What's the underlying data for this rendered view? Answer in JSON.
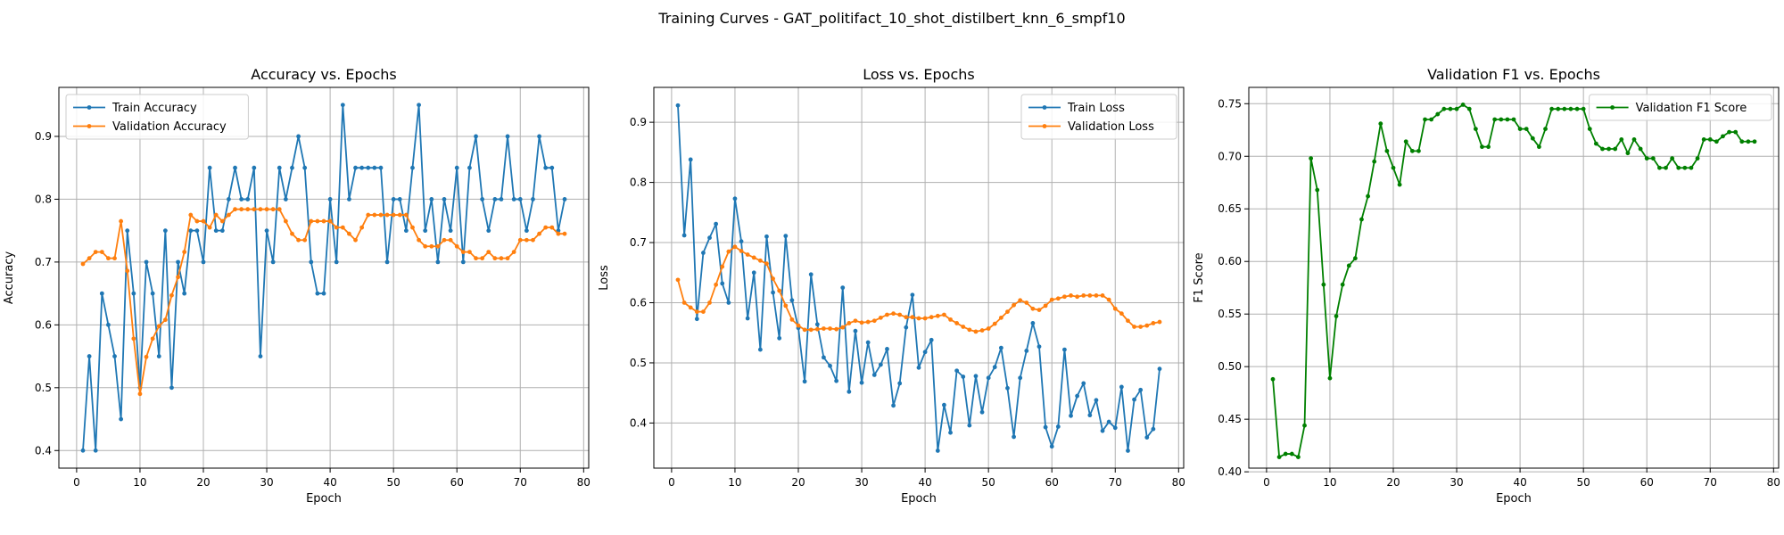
{
  "suptitle": "Training Curves - GAT_politifact_10_shot_distilbert_knn_6_smpf10",
  "colors": {
    "train": "#1f77b4",
    "validation": "#ff7f0e",
    "f1": "#008000",
    "grid": "#b0b0b0"
  },
  "chart_data": [
    {
      "type": "line",
      "title": "Accuracy vs. Epochs",
      "xlabel": "Epoch",
      "ylabel": "Accuracy",
      "xlim": [
        -2.8,
        80.8
      ],
      "ylim": [
        0.372,
        0.978
      ],
      "xticks": [
        0,
        10,
        20,
        30,
        40,
        50,
        60,
        70,
        80
      ],
      "yticks": [
        0.4,
        0.5,
        0.6,
        0.7,
        0.8,
        0.9
      ],
      "grid": true,
      "legend": "upper-left",
      "x_start": 1,
      "series": [
        {
          "name": "Train Accuracy",
          "color": "#1f77b4",
          "values": [
            0.4,
            0.55,
            0.4,
            0.65,
            0.6,
            0.55,
            0.45,
            0.75,
            0.65,
            0.5,
            0.7,
            0.65,
            0.55,
            0.75,
            0.5,
            0.7,
            0.65,
            0.75,
            0.75,
            0.7,
            0.85,
            0.75,
            0.75,
            0.8,
            0.85,
            0.8,
            0.8,
            0.85,
            0.55,
            0.75,
            0.7,
            0.85,
            0.8,
            0.85,
            0.9,
            0.85,
            0.7,
            0.65,
            0.65,
            0.8,
            0.7,
            0.95,
            0.8,
            0.85,
            0.85,
            0.85,
            0.85,
            0.85,
            0.7,
            0.8,
            0.8,
            0.75,
            0.85,
            0.95,
            0.75,
            0.8,
            0.7,
            0.8,
            0.75,
            0.85,
            0.7,
            0.85,
            0.9,
            0.8,
            0.75,
            0.8,
            0.8,
            0.9,
            0.8,
            0.8,
            0.75,
            0.8,
            0.9,
            0.85,
            0.85,
            0.75,
            0.8
          ]
        },
        {
          "name": "Validation Accuracy",
          "color": "#ff7f0e",
          "values": [
            0.697,
            0.706,
            0.716,
            0.716,
            0.706,
            0.706,
            0.765,
            0.686,
            0.578,
            0.49,
            0.549,
            0.578,
            0.598,
            0.608,
            0.647,
            0.676,
            0.716,
            0.775,
            0.765,
            0.765,
            0.755,
            0.775,
            0.765,
            0.775,
            0.784,
            0.784,
            0.784,
            0.784,
            0.784,
            0.784,
            0.784,
            0.784,
            0.765,
            0.745,
            0.735,
            0.735,
            0.765,
            0.765,
            0.765,
            0.765,
            0.755,
            0.755,
            0.745,
            0.735,
            0.755,
            0.775,
            0.775,
            0.775,
            0.775,
            0.775,
            0.775,
            0.775,
            0.755,
            0.735,
            0.725,
            0.725,
            0.725,
            0.735,
            0.735,
            0.725,
            0.716,
            0.716,
            0.706,
            0.706,
            0.716,
            0.706,
            0.706,
            0.706,
            0.716,
            0.735,
            0.735,
            0.735,
            0.745,
            0.755,
            0.755,
            0.745,
            0.745
          ]
        }
      ]
    },
    {
      "type": "line",
      "title": "Loss vs. Epochs",
      "xlabel": "Epoch",
      "ylabel": "Loss",
      "xlim": [
        -2.8,
        80.8
      ],
      "ylim": [
        0.325,
        0.958
      ],
      "xticks": [
        0,
        10,
        20,
        30,
        40,
        50,
        60,
        70,
        80
      ],
      "yticks": [
        0.4,
        0.5,
        0.6,
        0.7,
        0.8,
        0.9
      ],
      "grid": true,
      "legend": "upper-right",
      "x_start": 1,
      "series": [
        {
          "name": "Train Loss",
          "color": "#1f77b4",
          "values": [
            0.928,
            0.712,
            0.838,
            0.573,
            0.683,
            0.708,
            0.731,
            0.632,
            0.6,
            0.773,
            0.702,
            0.574,
            0.65,
            0.522,
            0.71,
            0.617,
            0.541,
            0.711,
            0.604,
            0.558,
            0.469,
            0.647,
            0.564,
            0.509,
            0.495,
            0.47,
            0.625,
            0.452,
            0.553,
            0.467,
            0.534,
            0.48,
            0.497,
            0.523,
            0.429,
            0.466,
            0.559,
            0.613,
            0.492,
            0.518,
            0.538,
            0.354,
            0.43,
            0.384,
            0.487,
            0.477,
            0.396,
            0.478,
            0.418,
            0.475,
            0.493,
            0.525,
            0.458,
            0.377,
            0.475,
            0.52,
            0.566,
            0.527,
            0.393,
            0.361,
            0.394,
            0.522,
            0.412,
            0.445,
            0.466,
            0.413,
            0.438,
            0.387,
            0.402,
            0.392,
            0.46,
            0.354,
            0.439,
            0.455,
            0.376,
            0.39,
            0.49
          ]
        },
        {
          "name": "Validation Loss",
          "color": "#ff7f0e",
          "values": [
            0.638,
            0.6,
            0.592,
            0.585,
            0.585,
            0.6,
            0.63,
            0.66,
            0.685,
            0.693,
            0.686,
            0.68,
            0.675,
            0.67,
            0.665,
            0.64,
            0.62,
            0.595,
            0.572,
            0.562,
            0.555,
            0.555,
            0.556,
            0.557,
            0.557,
            0.556,
            0.559,
            0.566,
            0.57,
            0.567,
            0.568,
            0.57,
            0.575,
            0.58,
            0.582,
            0.58,
            0.576,
            0.576,
            0.574,
            0.574,
            0.576,
            0.578,
            0.58,
            0.572,
            0.566,
            0.56,
            0.555,
            0.552,
            0.554,
            0.557,
            0.565,
            0.575,
            0.585,
            0.596,
            0.604,
            0.6,
            0.59,
            0.588,
            0.595,
            0.605,
            0.607,
            0.61,
            0.612,
            0.61,
            0.612,
            0.612,
            0.612,
            0.612,
            0.605,
            0.59,
            0.582,
            0.57,
            0.56,
            0.56,
            0.562,
            0.566,
            0.568
          ]
        }
      ]
    },
    {
      "type": "line",
      "title": "Validation F1 vs. Epochs",
      "xlabel": "Epoch",
      "ylabel": "F1 Score",
      "xlim": [
        -2.8,
        80.8
      ],
      "ylim": [
        0.4035,
        0.7655
      ],
      "xticks": [
        0,
        10,
        20,
        30,
        40,
        50,
        60,
        70,
        80
      ],
      "yticks": [
        0.4,
        0.45,
        0.5,
        0.55,
        0.6,
        0.65,
        0.7,
        0.75
      ],
      "grid": true,
      "legend": "upper-right",
      "x_start": 1,
      "series": [
        {
          "name": "Validation F1 Score",
          "color": "#008000",
          "values": [
            0.488,
            0.414,
            0.417,
            0.417,
            0.414,
            0.444,
            0.698,
            0.668,
            0.578,
            0.489,
            0.548,
            0.578,
            0.596,
            0.603,
            0.64,
            0.662,
            0.695,
            0.731,
            0.705,
            0.689,
            0.673,
            0.714,
            0.705,
            0.705,
            0.735,
            0.735,
            0.74,
            0.745,
            0.745,
            0.745,
            0.749,
            0.745,
            0.726,
            0.709,
            0.709,
            0.735,
            0.735,
            0.735,
            0.735,
            0.726,
            0.726,
            0.717,
            0.709,
            0.726,
            0.745,
            0.745,
            0.745,
            0.745,
            0.745,
            0.745,
            0.726,
            0.712,
            0.707,
            0.707,
            0.707,
            0.716,
            0.703,
            0.716,
            0.707,
            0.698,
            0.698,
            0.689,
            0.689,
            0.698,
            0.689,
            0.689,
            0.689,
            0.698,
            0.716,
            0.716,
            0.714,
            0.719,
            0.723,
            0.723,
            0.714,
            0.714,
            0.714
          ]
        }
      ]
    }
  ]
}
